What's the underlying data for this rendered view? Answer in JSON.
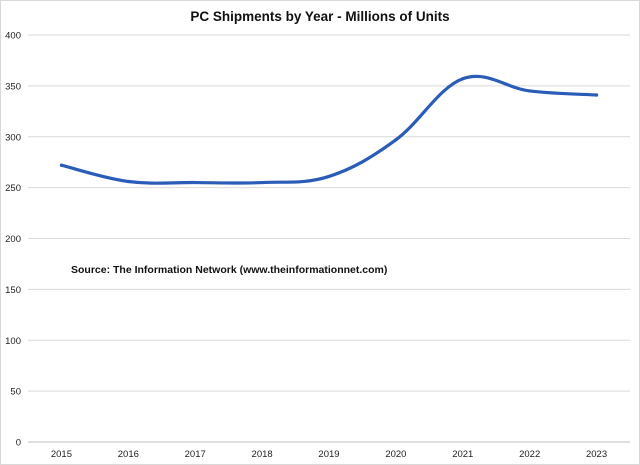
{
  "chart_data": {
    "type": "line",
    "title": "PC Shipments by Year - Millions of Units",
    "xlabel": "",
    "ylabel": "",
    "categories": [
      "2015",
      "2016",
      "2017",
      "2018",
      "2019",
      "2020",
      "2021",
      "2022",
      "2023"
    ],
    "series": [
      {
        "values": [
          272,
          256,
          255,
          255,
          261,
          297,
          357,
          345,
          341
        ],
        "color": "#2a5cb8"
      }
    ],
    "ylim": [
      0,
      400
    ],
    "yticks": [
      0,
      50,
      100,
      150,
      200,
      250,
      300,
      350,
      400
    ],
    "grid": true,
    "legend": "none",
    "annotation": "Source: The Information Network (www.theinformationnet.com)"
  }
}
